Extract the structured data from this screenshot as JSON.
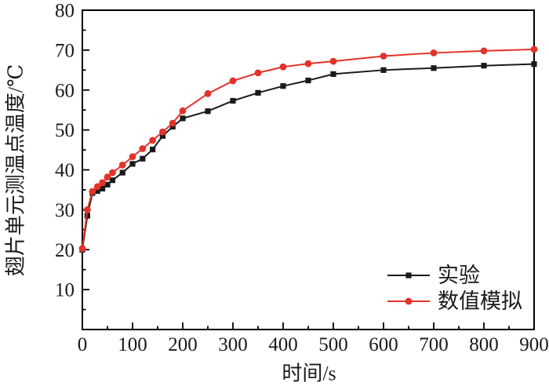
{
  "chart_data": {
    "type": "line",
    "title": "",
    "xlabel": "时间/s",
    "ylabel": "翅片单元测温点温度/℃",
    "xlim": [
      0,
      900
    ],
    "ylim": [
      0,
      80
    ],
    "x_major_ticks": [
      0,
      100,
      200,
      300,
      400,
      500,
      600,
      700,
      800,
      900
    ],
    "x_minor_step": 50,
    "y_major_ticks": [
      10,
      20,
      30,
      40,
      50,
      60,
      70,
      80
    ],
    "y_minor_step": 5,
    "grid": false,
    "legend_position": "inside-bottom-right",
    "axis_color": "#000000",
    "text_color": "#1a1a1a",
    "x": [
      0,
      10,
      20,
      30,
      40,
      50,
      60,
      80,
      100,
      120,
      140,
      160,
      180,
      200,
      250,
      300,
      350,
      400,
      450,
      500,
      600,
      700,
      800,
      900
    ],
    "series": [
      {
        "name": "实验",
        "marker": "square",
        "color": "#1a1a1a",
        "values": [
          20.0,
          28.5,
          34.2,
          34.7,
          35.3,
          36.3,
          37.4,
          39.3,
          41.5,
          42.8,
          45.1,
          48.5,
          50.8,
          52.9,
          54.7,
          57.3,
          59.3,
          61.0,
          62.4,
          64.0,
          65.0,
          65.5,
          66.1,
          66.5
        ]
      },
      {
        "name": "数值模拟",
        "marker": "circle",
        "color": "#e2332a",
        "values": [
          20.3,
          30.0,
          34.6,
          35.8,
          36.8,
          38.2,
          39.3,
          41.2,
          43.3,
          45.3,
          47.4,
          49.5,
          51.7,
          54.8,
          59.1,
          62.3,
          64.3,
          65.8,
          66.6,
          67.2,
          68.5,
          69.3,
          69.8,
          70.2
        ]
      }
    ]
  }
}
